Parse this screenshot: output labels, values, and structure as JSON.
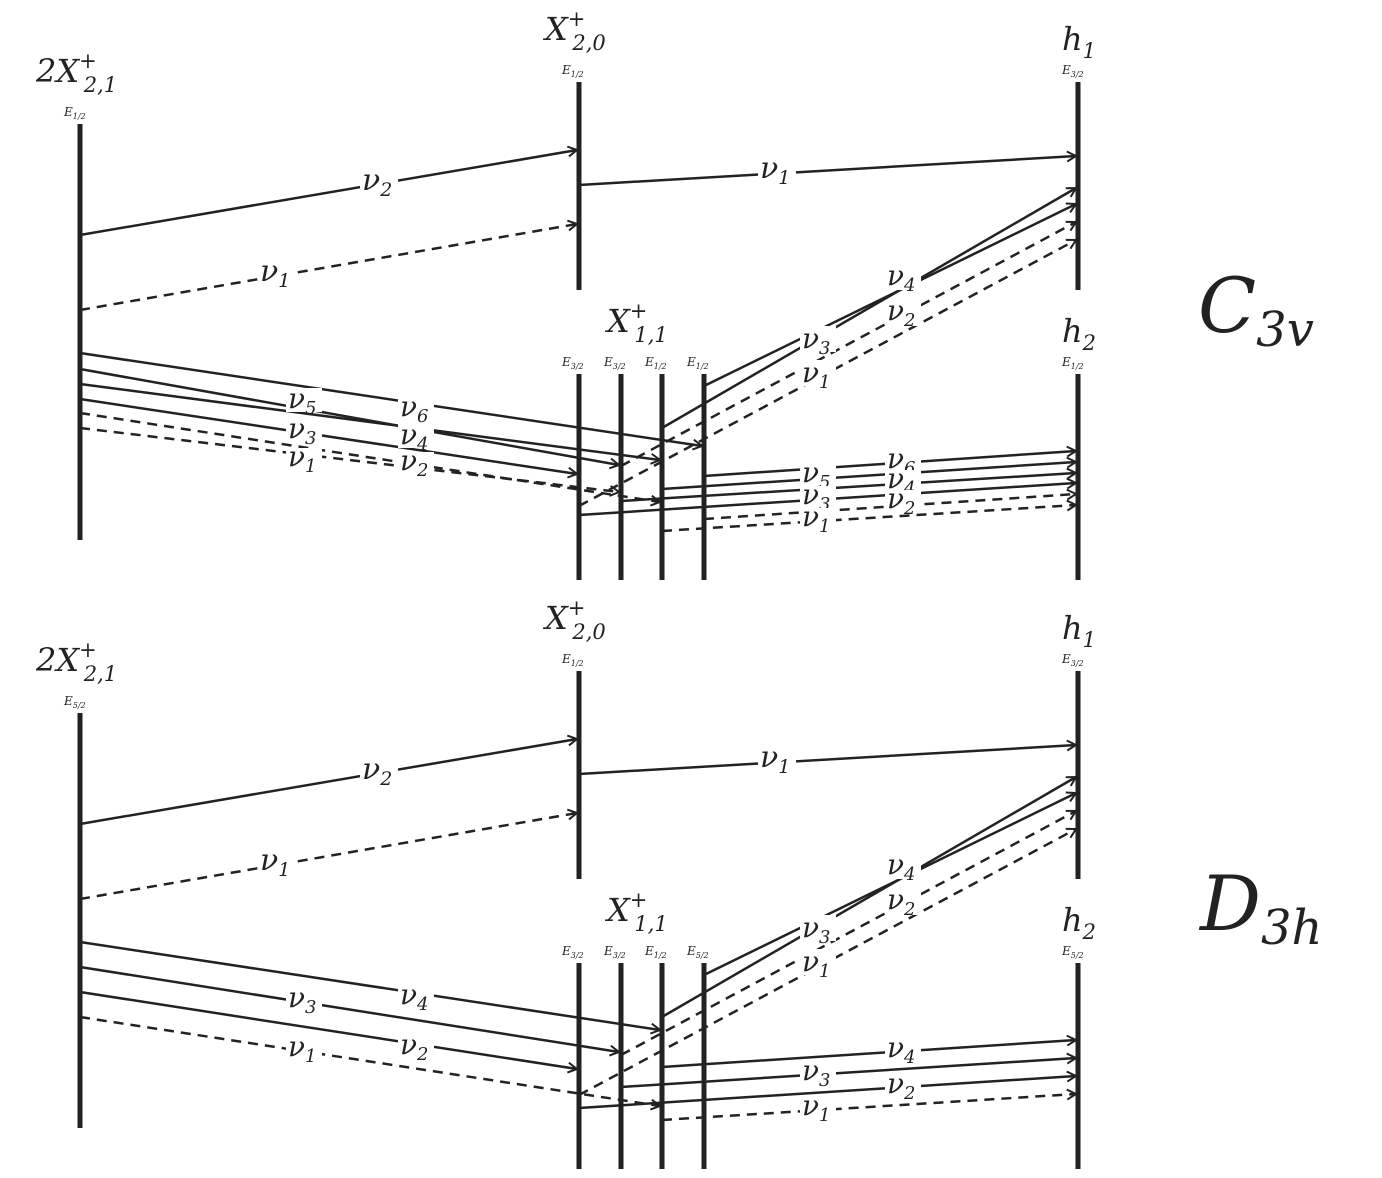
{
  "panels": [
    {
      "group": "C3v",
      "states": {
        "x21": {
          "name": "2X",
          "sup": "+",
          "sub": "2,1",
          "irrep": "E",
          "irrep_sub": "1/2"
        },
        "x20": {
          "name": "X",
          "sup": "+",
          "sub": "2,0",
          "irrep": "E",
          "irrep_sub": "1/2"
        },
        "h1": {
          "name": "h",
          "sub": "1",
          "irrep": "E",
          "irrep_sub": "3/2"
        },
        "x11": {
          "name": "X",
          "sup": "+",
          "sub": "1,1",
          "irreps": [
            {
              "irrep": "E",
              "irrep_sub": "3/2"
            },
            {
              "irrep": "E",
              "irrep_sub": "3/2"
            },
            {
              "irrep": "E",
              "irrep_sub": "1/2"
            },
            {
              "irrep": "E",
              "irrep_sub": "1/2"
            }
          ]
        },
        "h2": {
          "name": "h",
          "sub": "2",
          "irrep": "E",
          "irrep_sub": "1/2"
        }
      },
      "transitions": [
        {
          "label": "ν",
          "sub": "2"
        },
        {
          "label": "ν",
          "sub": "1"
        },
        {
          "label": "ν",
          "sub": "1"
        },
        {
          "label": "ν",
          "sub": "5"
        },
        {
          "label": "ν",
          "sub": "6"
        },
        {
          "label": "ν",
          "sub": "3"
        },
        {
          "label": "ν",
          "sub": "4"
        },
        {
          "label": "ν",
          "sub": "1"
        },
        {
          "label": "ν",
          "sub": "2"
        },
        {
          "label": "ν",
          "sub": "4"
        },
        {
          "label": "ν",
          "sub": "3"
        },
        {
          "label": "ν",
          "sub": "2"
        },
        {
          "label": "ν",
          "sub": "1"
        },
        {
          "label": "ν",
          "sub": "5"
        },
        {
          "label": "ν",
          "sub": "6"
        },
        {
          "label": "ν",
          "sub": "3"
        },
        {
          "label": "ν",
          "sub": "4"
        },
        {
          "label": "ν",
          "sub": "1"
        },
        {
          "label": "ν",
          "sub": "2"
        }
      ]
    },
    {
      "group": "D3h",
      "states": {
        "x21": {
          "name": "2X",
          "sup": "+",
          "sub": "2,1",
          "irrep": "E",
          "irrep_sub": "5/2"
        },
        "x20": {
          "name": "X",
          "sup": "+",
          "sub": "2,0",
          "irrep": "E",
          "irrep_sub": "1/2"
        },
        "h1": {
          "name": "h",
          "sub": "1",
          "irrep": "E",
          "irrep_sub": "3/2"
        },
        "x11": {
          "name": "X",
          "sup": "+",
          "sub": "1,1",
          "irreps": [
            {
              "irrep": "E",
              "irrep_sub": "3/2"
            },
            {
              "irrep": "E",
              "irrep_sub": "3/2"
            },
            {
              "irrep": "E",
              "irrep_sub": "1/2"
            },
            {
              "irrep": "E",
              "irrep_sub": "5/2"
            }
          ]
        },
        "h2": {
          "name": "h",
          "sub": "2",
          "irrep": "E",
          "irrep_sub": "5/2"
        }
      },
      "transitions": [
        {
          "label": "ν",
          "sub": "2"
        },
        {
          "label": "ν",
          "sub": "1"
        },
        {
          "label": "ν",
          "sub": "1"
        },
        {
          "label": "ν",
          "sub": "3"
        },
        {
          "label": "ν",
          "sub": "4"
        },
        {
          "label": "ν",
          "sub": "1"
        },
        {
          "label": "ν",
          "sub": "2"
        },
        {
          "label": "ν",
          "sub": "4"
        },
        {
          "label": "ν",
          "sub": "3"
        },
        {
          "label": "ν",
          "sub": "2"
        },
        {
          "label": "ν",
          "sub": "1"
        },
        {
          "label": "ν",
          "sub": "4"
        },
        {
          "label": "ν",
          "sub": "3"
        },
        {
          "label": "ν",
          "sub": "2"
        },
        {
          "label": "ν",
          "sub": "1"
        }
      ]
    }
  ],
  "group_labels": [
    {
      "main": "C",
      "sub": "3v"
    },
    {
      "main": "D",
      "sub": "3h"
    }
  ]
}
